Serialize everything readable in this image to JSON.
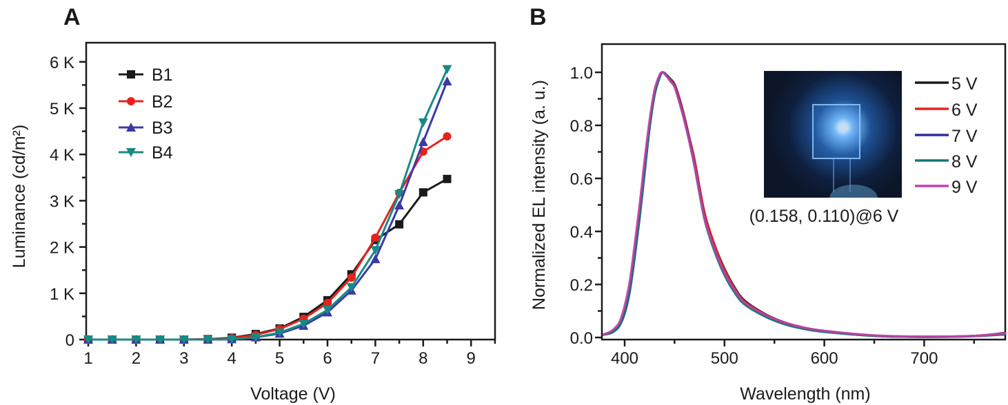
{
  "panels": {
    "a": "A",
    "b": "B"
  },
  "colors": {
    "B1": "#1a1a1a",
    "B2": "#e5221c",
    "B3": "#3a3aa6",
    "B4": "#178a86",
    "5 V": "#1a1a1a",
    "6 V": "#e5221c",
    "7 V": "#2e2e9e",
    "8 V": "#137a72",
    "9 V": "#c440a8"
  },
  "chart_data": [
    {
      "type": "line",
      "panel": "A",
      "xlabel": "Voltage (V)",
      "ylabel": "Luminance (cd/m²)",
      "xlim": [
        1,
        9.5
      ],
      "ylim": [
        0,
        6.4
      ],
      "xticks": [
        "1",
        "2",
        "3",
        "4",
        "5",
        "6",
        "7",
        "8",
        "9"
      ],
      "yticks": [
        "0",
        "1 K",
        "2 K",
        "3 K",
        "4 K",
        "5 K",
        "6 K"
      ],
      "y_unit": "K (thousand cd/m²)",
      "legend_position": "top-left",
      "x": [
        1,
        1.5,
        2,
        2.5,
        3,
        3.5,
        4,
        4.5,
        5,
        5.5,
        6,
        6.5,
        7,
        7.5,
        8,
        8.5
      ],
      "series": [
        {
          "name": "B1",
          "marker": "square",
          "values": [
            0,
            0,
            0,
            0,
            0,
            0.01,
            0.04,
            0.12,
            0.24,
            0.49,
            0.85,
            1.41,
            2.15,
            2.49,
            3.18,
            3.47
          ]
        },
        {
          "name": "B2",
          "marker": "circle",
          "values": [
            0,
            0,
            0,
            0,
            0,
            0.01,
            0.03,
            0.1,
            0.23,
            0.45,
            0.79,
            1.34,
            2.2,
            3.17,
            4.06,
            4.39
          ]
        },
        {
          "name": "B3",
          "marker": "triangle-up",
          "values": [
            0,
            0,
            0,
            0,
            0,
            0,
            0.01,
            0.05,
            0.13,
            0.3,
            0.59,
            1.06,
            1.74,
            2.9,
            4.27,
            5.58
          ]
        },
        {
          "name": "B4",
          "marker": "triangle-down",
          "values": [
            0,
            0,
            0,
            0,
            0,
            0,
            0.01,
            0.05,
            0.15,
            0.34,
            0.64,
            1.13,
            1.93,
            3.14,
            4.69,
            5.84
          ]
        }
      ]
    },
    {
      "type": "line",
      "panel": "B",
      "xlabel": "Wavelength (nm)",
      "ylabel": "Normalized EL intensity (a. u.)",
      "xlim": [
        378,
        782
      ],
      "ylim": [
        -0.01,
        1.1
      ],
      "xticks": [
        "400",
        "500",
        "600",
        "700"
      ],
      "yticks": [
        "0.0",
        "0.2",
        "0.4",
        "0.6",
        "0.8",
        "1.0"
      ],
      "legend_position": "top-right",
      "annotation": "(0.158, 0.110)@6 V",
      "x": [
        378,
        385,
        390,
        395,
        400,
        405,
        410,
        415,
        420,
        425,
        430,
        435,
        438,
        442,
        446,
        450,
        455,
        460,
        465,
        470,
        480,
        490,
        500,
        510,
        520,
        540,
        560,
        580,
        600,
        650,
        700,
        750,
        782
      ],
      "series": [
        {
          "name": "5 V",
          "values": [
            0.01,
            0.02,
            0.03,
            0.05,
            0.1,
            0.19,
            0.32,
            0.47,
            0.64,
            0.8,
            0.92,
            0.985,
            1.0,
            0.99,
            0.975,
            0.955,
            0.9,
            0.83,
            0.75,
            0.67,
            0.47,
            0.35,
            0.26,
            0.19,
            0.14,
            0.09,
            0.057,
            0.037,
            0.025,
            0.007,
            0.003,
            0.006,
            0.018
          ]
        },
        {
          "name": "6 V",
          "values": [
            0.01,
            0.02,
            0.03,
            0.05,
            0.1,
            0.19,
            0.32,
            0.47,
            0.64,
            0.8,
            0.92,
            0.985,
            1.0,
            0.99,
            0.975,
            0.955,
            0.9,
            0.83,
            0.75,
            0.67,
            0.47,
            0.35,
            0.255,
            0.185,
            0.135,
            0.088,
            0.056,
            0.036,
            0.024,
            0.007,
            0.003,
            0.006,
            0.017
          ]
        },
        {
          "name": "7 V",
          "values": [
            0.01,
            0.015,
            0.025,
            0.045,
            0.09,
            0.17,
            0.3,
            0.45,
            0.62,
            0.79,
            0.915,
            0.98,
            1.0,
            0.99,
            0.97,
            0.95,
            0.89,
            0.82,
            0.74,
            0.65,
            0.45,
            0.33,
            0.24,
            0.175,
            0.128,
            0.083,
            0.052,
            0.033,
            0.022,
            0.006,
            0.002,
            0.005,
            0.012
          ]
        },
        {
          "name": "8 V",
          "values": [
            0.01,
            0.016,
            0.026,
            0.047,
            0.095,
            0.18,
            0.31,
            0.46,
            0.63,
            0.79,
            0.915,
            0.98,
            1.0,
            0.988,
            0.968,
            0.945,
            0.885,
            0.815,
            0.735,
            0.645,
            0.445,
            0.325,
            0.235,
            0.17,
            0.125,
            0.08,
            0.05,
            0.032,
            0.021,
            0.006,
            0.002,
            0.005,
            0.014
          ]
        },
        {
          "name": "9 V",
          "values": [
            0.01,
            0.02,
            0.035,
            0.06,
            0.12,
            0.21,
            0.35,
            0.5,
            0.67,
            0.82,
            0.935,
            0.99,
            1.0,
            0.985,
            0.965,
            0.945,
            0.885,
            0.815,
            0.735,
            0.65,
            0.45,
            0.335,
            0.245,
            0.18,
            0.132,
            0.087,
            0.056,
            0.037,
            0.025,
            0.008,
            0.003,
            0.006,
            0.016
          ]
        }
      ]
    }
  ]
}
